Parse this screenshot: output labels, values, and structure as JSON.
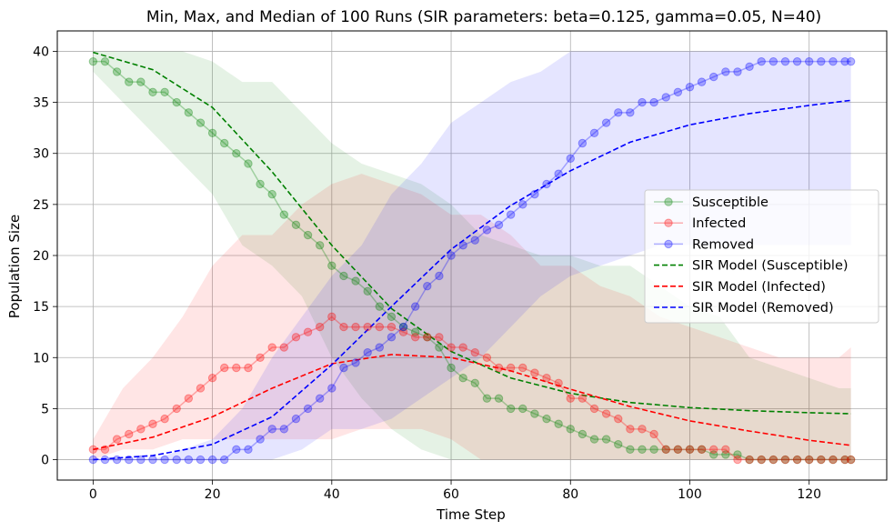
{
  "chart_data": {
    "type": "line",
    "title": "Min, Max, and Median of 100 Runs (SIR parameters: beta=0.125, gamma=0.05, N=40)",
    "xlabel": "Time Step",
    "ylabel": "Population Size",
    "xlim": [
      -6,
      133
    ],
    "ylim": [
      -2,
      42
    ],
    "xticks": [
      0,
      20,
      40,
      60,
      80,
      100,
      120
    ],
    "yticks": [
      0,
      5,
      10,
      15,
      20,
      25,
      30,
      35,
      40
    ],
    "grid": true,
    "legend_position": "center-right",
    "colors": {
      "susceptible": "#008000",
      "infected": "#ff0000",
      "removed": "#0000ff"
    },
    "median_series": [
      {
        "name": "Susceptible",
        "key": "susceptible",
        "x": [
          0,
          2,
          4,
          6,
          8,
          10,
          12,
          14,
          16,
          18,
          20,
          22,
          24,
          26,
          28,
          30,
          32,
          34,
          36,
          38,
          40,
          42,
          44,
          46,
          48,
          50,
          52,
          54,
          56,
          58,
          60,
          62,
          64,
          66,
          68,
          70,
          72,
          74,
          76,
          78,
          80,
          82,
          84,
          86,
          88,
          90,
          92,
          94,
          96,
          98,
          100,
          102,
          104,
          106,
          108,
          110,
          112,
          114,
          116,
          118,
          120,
          122,
          124,
          126,
          127
        ],
        "y": [
          39,
          39,
          38,
          37,
          37,
          36,
          36,
          35,
          34,
          33,
          32,
          31,
          30,
          29,
          27,
          26,
          24,
          23,
          22,
          21,
          19,
          18,
          17.5,
          16.5,
          15,
          14,
          13,
          12.5,
          12,
          11,
          9,
          8,
          7.5,
          6,
          6,
          5,
          5,
          4.5,
          4,
          3.5,
          3,
          2.5,
          2,
          2,
          1.5,
          1,
          1,
          1,
          1,
          1,
          1,
          1,
          0.5,
          0.5,
          0.5,
          0,
          0,
          0,
          0,
          0,
          0,
          0,
          0,
          0,
          0
        ]
      },
      {
        "name": "Infected",
        "key": "infected",
        "x": [
          0,
          2,
          4,
          6,
          8,
          10,
          12,
          14,
          16,
          18,
          20,
          22,
          24,
          26,
          28,
          30,
          32,
          34,
          36,
          38,
          40,
          42,
          44,
          46,
          48,
          50,
          52,
          54,
          56,
          58,
          60,
          62,
          64,
          66,
          68,
          70,
          72,
          74,
          76,
          78,
          80,
          82,
          84,
          86,
          88,
          90,
          92,
          94,
          96,
          98,
          100,
          102,
          104,
          106,
          108,
          110,
          112,
          114,
          116,
          118,
          120,
          122,
          124,
          126,
          127
        ],
        "y": [
          1,
          1,
          2,
          2.5,
          3,
          3.5,
          4,
          5,
          6,
          7,
          8,
          9,
          9,
          9,
          10,
          11,
          11,
          12,
          12.5,
          13,
          14,
          13,
          13,
          13,
          13,
          13,
          12.5,
          12,
          12,
          12,
          11,
          11,
          10.5,
          10,
          9,
          9,
          9,
          8.5,
          8,
          7.5,
          6,
          6,
          5,
          4.5,
          4,
          3,
          3,
          2.5,
          1,
          1,
          1,
          1,
          1,
          1,
          0,
          0,
          0,
          0,
          0,
          0,
          0,
          0,
          0,
          0,
          0
        ]
      },
      {
        "name": "Removed",
        "key": "removed",
        "x": [
          0,
          2,
          4,
          6,
          8,
          10,
          12,
          14,
          16,
          18,
          20,
          22,
          24,
          26,
          28,
          30,
          32,
          34,
          36,
          38,
          40,
          42,
          44,
          46,
          48,
          50,
          52,
          54,
          56,
          58,
          60,
          62,
          64,
          66,
          68,
          70,
          72,
          74,
          76,
          78,
          80,
          82,
          84,
          86,
          88,
          90,
          92,
          94,
          96,
          98,
          100,
          102,
          104,
          106,
          108,
          110,
          112,
          114,
          116,
          118,
          120,
          122,
          124,
          126,
          127
        ],
        "y": [
          0,
          0,
          0,
          0,
          0,
          0,
          0,
          0,
          0,
          0,
          0,
          0,
          1,
          1,
          2,
          3,
          3,
          4,
          5,
          6,
          7,
          9,
          9.5,
          10.5,
          11,
          12,
          13,
          15,
          17,
          18,
          20,
          21,
          21.5,
          22.5,
          23,
          24,
          25,
          26,
          27,
          28,
          29.5,
          31,
          32,
          33,
          34,
          34,
          35,
          35,
          35.5,
          36,
          36.5,
          37,
          37.5,
          38,
          38,
          38.5,
          39,
          39,
          39,
          39,
          39,
          39,
          39,
          39,
          39
        ]
      }
    ],
    "range_bands": [
      {
        "key": "susceptible",
        "x": [
          0,
          5,
          10,
          15,
          20,
          25,
          30,
          35,
          40,
          45,
          50,
          55,
          60,
          65,
          70,
          75,
          80,
          85,
          90,
          95,
          100,
          105,
          110,
          115,
          120,
          125,
          127
        ],
        "min": [
          38,
          35,
          32,
          29,
          26,
          21,
          19,
          16,
          10,
          6,
          3,
          1,
          0,
          0,
          0,
          0,
          0,
          0,
          0,
          0,
          0,
          0,
          0,
          0,
          0,
          0,
          0
        ],
        "max": [
          40,
          40,
          40,
          40,
          39,
          37,
          37,
          34,
          31,
          29,
          28,
          27,
          25,
          22,
          21,
          20,
          20,
          19,
          19,
          17,
          15,
          14,
          10,
          9,
          8,
          7,
          7
        ]
      },
      {
        "key": "infected",
        "x": [
          0,
          5,
          10,
          15,
          20,
          25,
          30,
          35,
          40,
          45,
          50,
          55,
          60,
          65,
          70,
          75,
          80,
          85,
          90,
          95,
          100,
          105,
          110,
          115,
          120,
          125,
          127
        ],
        "min": [
          0,
          1,
          1,
          2,
          2,
          2,
          2,
          2,
          2,
          3,
          3,
          3,
          2,
          0,
          0,
          0,
          0,
          0,
          0,
          0,
          0,
          0,
          0,
          0,
          0,
          0,
          0
        ],
        "max": [
          2,
          7,
          10,
          14,
          19,
          22,
          22,
          25,
          27,
          28,
          27,
          26,
          24,
          24,
          22,
          19,
          19,
          17,
          16,
          14,
          13,
          12,
          11,
          10,
          10,
          10,
          11
        ]
      },
      {
        "key": "removed",
        "x": [
          0,
          5,
          10,
          15,
          20,
          25,
          30,
          35,
          40,
          45,
          50,
          55,
          60,
          65,
          70,
          75,
          80,
          85,
          90,
          95,
          100,
          105,
          110,
          115,
          120,
          125,
          127
        ],
        "min": [
          0,
          0,
          0,
          0,
          0,
          0,
          0,
          1,
          3,
          3,
          4,
          6,
          8,
          10,
          13,
          16,
          18,
          19,
          20,
          21,
          21,
          21,
          21,
          21,
          21,
          21,
          21
        ],
        "max": [
          0,
          0,
          0,
          1,
          2,
          5,
          10,
          14,
          18,
          21,
          26,
          29,
          33,
          35,
          37,
          38,
          40,
          40,
          40,
          40,
          40,
          40,
          40,
          40,
          40,
          40,
          40
        ]
      }
    ],
    "model_series": [
      {
        "name": "SIR Model (Susceptible)",
        "key": "susceptible",
        "x": [
          0,
          10,
          20,
          30,
          40,
          50,
          60,
          70,
          80,
          90,
          100,
          110,
          120,
          127
        ],
        "y": [
          39.9,
          38.2,
          34.5,
          28.2,
          21.0,
          14.8,
          10.6,
          8.0,
          6.5,
          5.6,
          5.1,
          4.8,
          4.6,
          4.5
        ]
      },
      {
        "name": "SIR Model (Infected)",
        "key": "infected",
        "x": [
          0,
          10,
          20,
          30,
          40,
          50,
          60,
          70,
          80,
          90,
          100,
          110,
          120,
          127
        ],
        "y": [
          1.0,
          2.2,
          4.2,
          7.0,
          9.4,
          10.3,
          10.0,
          8.7,
          6.9,
          5.2,
          3.8,
          2.8,
          1.9,
          1.4
        ]
      },
      {
        "name": "SIR Model (Removed)",
        "key": "removed",
        "x": [
          0,
          10,
          20,
          30,
          40,
          50,
          60,
          70,
          80,
          90,
          100,
          110,
          120,
          127
        ],
        "y": [
          0.0,
          0.4,
          1.5,
          4.2,
          9.3,
          15.0,
          20.6,
          24.9,
          28.3,
          31.1,
          32.8,
          33.9,
          34.7,
          35.2
        ]
      }
    ],
    "legend": [
      {
        "label": "Susceptible",
        "key": "susceptible",
        "style": "marker"
      },
      {
        "label": "Infected",
        "key": "infected",
        "style": "marker"
      },
      {
        "label": "Removed",
        "key": "removed",
        "style": "marker"
      },
      {
        "label": "SIR Model (Susceptible)",
        "key": "susceptible",
        "style": "dashed"
      },
      {
        "label": "SIR Model (Infected)",
        "key": "infected",
        "style": "dashed"
      },
      {
        "label": "SIR Model (Removed)",
        "key": "removed",
        "style": "dashed"
      }
    ]
  }
}
